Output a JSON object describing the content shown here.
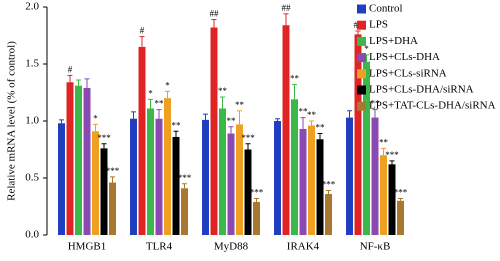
{
  "chart_data": {
    "type": "bar",
    "y_label": "Relative mRNA level (% of control)",
    "categories": [
      "HMGB1",
      "TLR4",
      "MyD88",
      "IRAK4",
      "NF-κB"
    ],
    "ylim": [
      0,
      2.0
    ],
    "yticks": [
      {
        "value": 0,
        "label": "0.0"
      },
      0.5,
      {
        "value": 1,
        "label": "1.0"
      },
      1.5,
      {
        "value": 2,
        "label": "2.0"
      }
    ],
    "series": [
      {
        "name": "Control",
        "color": "#1f3fc0",
        "values": [
          0.98,
          1.02,
          1.01,
          1.0,
          1.03
        ],
        "errors": [
          0.03,
          0.06,
          0.05,
          0.02,
          0.06
        ],
        "annotations": [
          null,
          null,
          null,
          null,
          null
        ]
      },
      {
        "name": "LPS",
        "color": "#e02424",
        "values": [
          1.34,
          1.65,
          1.82,
          1.84,
          1.76
        ],
        "errors": [
          0.06,
          0.09,
          0.07,
          0.1,
          0.03
        ],
        "annotations": [
          "#",
          "#",
          "##",
          "##",
          "##"
        ]
      },
      {
        "name": "LPS+DHA",
        "color": "#3cb84a",
        "values": [
          1.31,
          1.11,
          1.11,
          1.19,
          1.52
        ],
        "errors": [
          0.05,
          0.08,
          0.1,
          0.13,
          0.06
        ],
        "annotations": [
          null,
          "*",
          "**",
          "**",
          "*"
        ]
      },
      {
        "name": "LPS+CLs-DHA",
        "color": "#8a4ab2",
        "values": [
          1.29,
          1.02,
          0.89,
          0.93,
          1.03
        ],
        "errors": [
          0.08,
          0.08,
          0.06,
          0.1,
          0.07
        ],
        "annotations": [
          null,
          "**",
          "**",
          "**",
          "**"
        ]
      },
      {
        "name": "LPS+CLs-siRNA",
        "color": "#f0a020",
        "values": [
          0.91,
          1.2,
          0.97,
          0.96,
          0.7
        ],
        "errors": [
          0.06,
          0.06,
          0.12,
          0.04,
          0.06
        ],
        "annotations": [
          "*",
          "*",
          "**",
          "**",
          "**"
        ]
      },
      {
        "name": "LPS+CLs-DHA/siRNA",
        "color": "#000000",
        "values": [
          0.76,
          0.86,
          0.75,
          0.84,
          0.62
        ],
        "errors": [
          0.04,
          0.05,
          0.05,
          0.05,
          0.03
        ],
        "annotations": [
          "***",
          "**",
          "***",
          "**",
          "***"
        ]
      },
      {
        "name": "LPS+TAT-CLs-DHA/siRNA",
        "color": "#a87830",
        "values": [
          0.46,
          0.41,
          0.29,
          0.36,
          0.3
        ],
        "errors": [
          0.05,
          0.04,
          0.03,
          0.03,
          0.02
        ],
        "annotations": [
          "***",
          "***",
          "***",
          "***",
          "***"
        ]
      }
    ]
  }
}
